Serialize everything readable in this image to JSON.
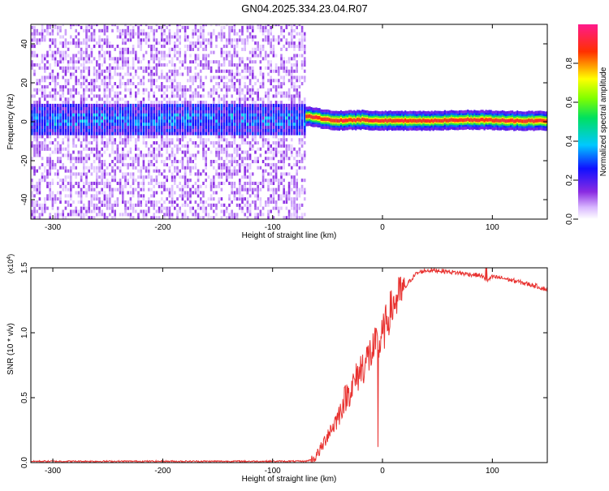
{
  "title": "GN04.2025.334.23.04.R07",
  "colors": {
    "snr_line": "#e8312f",
    "frame": "#000000"
  },
  "chart_data": [
    {
      "type": "heatmap",
      "xlabel": "Height of straight line (km)",
      "ylabel": "Frequency (Hz)",
      "xlim": [
        -320,
        150
      ],
      "ylim": [
        -50,
        50
      ],
      "xticks": [
        -300,
        -200,
        -100,
        0,
        100
      ],
      "xtick_labels": [
        "-300",
        "-200",
        "-100",
        "0",
        "100"
      ],
      "yticks": [
        -40,
        -20,
        0,
        20,
        40
      ],
      "ytick_labels": [
        "-40",
        "-20",
        "0",
        "20",
        "40"
      ],
      "colorbar": {
        "label": "Normalized spectral amplitude",
        "range": [
          0,
          1
        ],
        "ticks": [
          0.0,
          0.2,
          0.4,
          0.6,
          0.8
        ],
        "tick_labels": [
          "0.0",
          "0.2",
          "0.4",
          "0.6",
          "0.8"
        ],
        "colormap": "rainbow: white-violet-blue-cyan-green-yellow-red-magenta"
      },
      "signal": {
        "noise_region_x": [
          -320,
          -70
        ],
        "noise_band_halfwidth_hz": 8,
        "tone_region_x": [
          -70,
          150
        ],
        "tone_track": [
          [
            -70,
            3
          ],
          [
            -60,
            2
          ],
          [
            -45,
            0.5
          ],
          [
            -20,
            1
          ],
          [
            0,
            0.5
          ],
          [
            40,
            0.5
          ],
          [
            80,
            1
          ],
          [
            120,
            0.5
          ],
          [
            150,
            0.5
          ]
        ]
      }
    },
    {
      "type": "line",
      "xlabel": "Height of straight line (km)",
      "ylabel": "SNR (10 * v/v)",
      "y_multiplier": "(x10^4)",
      "xlim": [
        -320,
        150
      ],
      "ylim": [
        0,
        1.5
      ],
      "xticks": [
        -300,
        -200,
        -100,
        0,
        100
      ],
      "xtick_labels": [
        "-300",
        "-200",
        "-100",
        "0",
        "100"
      ],
      "yticks": [
        0,
        0.5,
        1.0,
        1.5
      ],
      "ytick_labels": [
        "0.0",
        "0.5",
        "1.0",
        "1.5"
      ],
      "series": [
        {
          "x": [
            -320,
            -200,
            -100,
            -70,
            -62,
            -55,
            -50,
            -45,
            -40,
            -35,
            -30,
            -25,
            -20,
            -15,
            -10,
            -5,
            0,
            5,
            10,
            15,
            20,
            25,
            30,
            35,
            40,
            50,
            60,
            70,
            80,
            90,
            95,
            100,
            110,
            120,
            130,
            140,
            150
          ],
          "y": [
            0.01,
            0.01,
            0.01,
            0.01,
            0.03,
            0.12,
            0.22,
            0.28,
            0.36,
            0.48,
            0.55,
            0.62,
            0.72,
            0.78,
            0.85,
            0.9,
            0.97,
            1.12,
            1.22,
            1.28,
            1.34,
            1.4,
            1.45,
            1.47,
            1.48,
            1.48,
            1.47,
            1.46,
            1.45,
            1.44,
            1.4,
            1.43,
            1.42,
            1.4,
            1.38,
            1.36,
            1.33
          ]
        }
      ]
    }
  ]
}
